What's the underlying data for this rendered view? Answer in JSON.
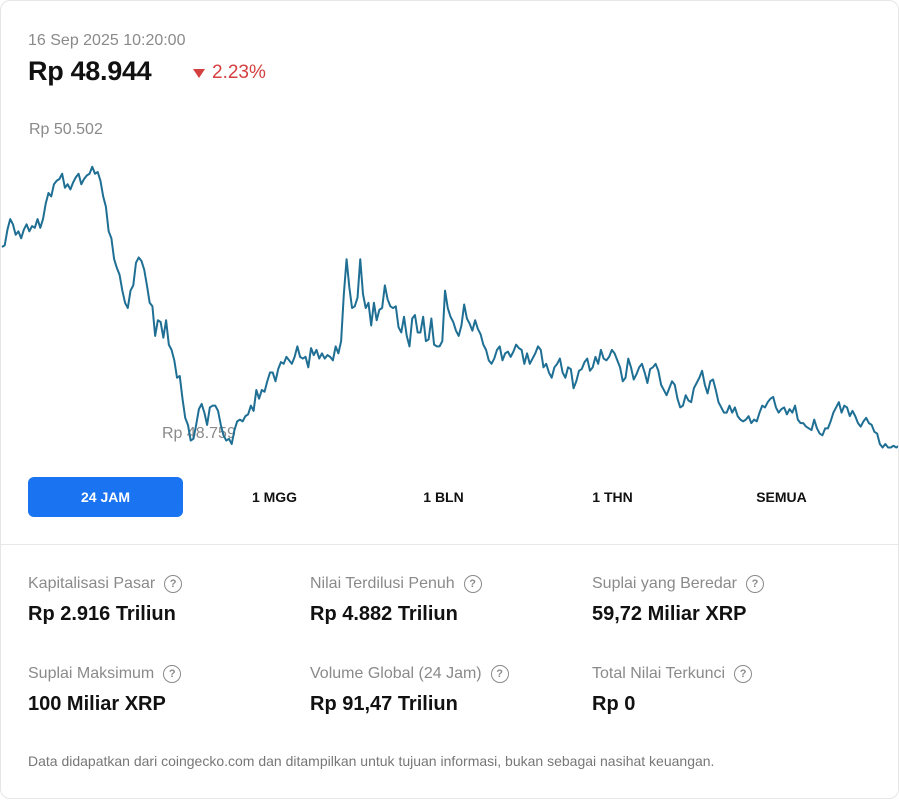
{
  "header": {
    "timestamp": "16 Sep 2025 10:20:00",
    "price": "Rp 48.944",
    "change": "2.23%",
    "change_direction": "down",
    "change_color": "#d3403f"
  },
  "chart_data": {
    "type": "line",
    "color": "#1f6f94",
    "high_label": "Rp 50.502",
    "low_label": "Rp 48.759",
    "ylim": [
      48700,
      50650
    ],
    "values": [
      49870,
      49880,
      49970,
      50030,
      50000,
      49940,
      49960,
      49920,
      49970,
      50000,
      49960,
      49990,
      49980,
      50030,
      49980,
      50030,
      50120,
      50180,
      50160,
      50230,
      50250,
      50260,
      50290,
      50210,
      50230,
      50200,
      50240,
      50270,
      50290,
      50230,
      50260,
      50280,
      50290,
      50330,
      50290,
      50300,
      50250,
      50160,
      50100,
      49960,
      49920,
      49800,
      49750,
      49710,
      49620,
      49550,
      49520,
      49620,
      49650,
      49780,
      49810,
      49790,
      49740,
      49650,
      49550,
      49530,
      49360,
      49450,
      49440,
      49350,
      49450,
      49310,
      49280,
      49220,
      49120,
      49130,
      49000,
      48890,
      48850,
      48760,
      48770,
      48850,
      48940,
      48970,
      48920,
      48850,
      48950,
      48960,
      48960,
      48930,
      48850,
      48790,
      48760,
      48770,
      48740,
      48820,
      48870,
      48880,
      48870,
      48900,
      48910,
      48960,
      48930,
      49050,
      49000,
      49050,
      49040,
      49100,
      49150,
      49150,
      49100,
      49170,
      49210,
      49200,
      49240,
      49220,
      49200,
      49240,
      49300,
      49240,
      49230,
      49240,
      49180,
      49290,
      49250,
      49280,
      49230,
      49260,
      49230,
      49250,
      49240,
      49220,
      49300,
      49260,
      49330,
      49600,
      49800,
      49640,
      49520,
      49530,
      49580,
      49800,
      49600,
      49520,
      49550,
      49420,
      49550,
      49450,
      49510,
      49520,
      49650,
      49570,
      49530,
      49520,
      49530,
      49410,
      49380,
      49470,
      49360,
      49300,
      49460,
      49480,
      49380,
      49380,
      49470,
      49330,
      49340,
      49460,
      49310,
      49300,
      49300,
      49330,
      49620,
      49520,
      49470,
      49440,
      49390,
      49360,
      49420,
      49540,
      49460,
      49430,
      49390,
      49450,
      49400,
      49370,
      49310,
      49280,
      49220,
      49200,
      49230,
      49280,
      49300,
      49220,
      49260,
      49270,
      49240,
      49270,
      49310,
      49290,
      49280,
      49200,
      49260,
      49200,
      49230,
      49260,
      49300,
      49280,
      49180,
      49200,
      49150,
      49120,
      49180,
      49200,
      49230,
      49150,
      49120,
      49180,
      49170,
      49060,
      49100,
      49160,
      49170,
      49210,
      49230,
      49160,
      49180,
      49240,
      49200,
      49280,
      49230,
      49220,
      49240,
      49280,
      49260,
      49220,
      49180,
      49100,
      49120,
      49230,
      49180,
      49110,
      49140,
      49180,
      49200,
      49150,
      49090,
      49170,
      49180,
      49200,
      49160,
      49080,
      49050,
      49020,
      49060,
      49100,
      49080,
      49000,
      48950,
      48960,
      49020,
      48990,
      48980,
      49060,
      49090,
      49120,
      49160,
      49080,
      49030,
      49100,
      49110,
      49050,
      48980,
      48950,
      48920,
      48920,
      48960,
      48920,
      48950,
      48900,
      48880,
      48870,
      48880,
      48900,
      48860,
      48880,
      48870,
      48920,
      48960,
      48950,
      48980,
      49000,
      49010,
      48950,
      48920,
      48940,
      48950,
      48910,
      48940,
      48920,
      48960,
      48880,
      48860,
      48860,
      48840,
      48830,
      48820,
      48880,
      48830,
      48800,
      48790,
      48830,
      48830,
      48870,
      48920,
      48950,
      48980,
      48920,
      48960,
      48950,
      48900,
      48930,
      48900,
      48860,
      48840,
      48870,
      48890,
      48860,
      48850,
      48810,
      48800,
      48740,
      48720,
      48740,
      48720,
      48720,
      48730,
      48720,
      48730
    ]
  },
  "range_tabs": [
    {
      "label": "24 JAM",
      "active": true
    },
    {
      "label": "1 MGG",
      "active": false
    },
    {
      "label": "1 BLN",
      "active": false
    },
    {
      "label": "1 THN",
      "active": false
    },
    {
      "label": "SEMUA",
      "active": false
    }
  ],
  "stats": [
    {
      "label": "Kapitalisasi Pasar",
      "value": "Rp 2.916 Triliun"
    },
    {
      "label": "Nilai Terdilusi Penuh",
      "value": "Rp 4.882 Triliun"
    },
    {
      "label": "Suplai yang Beredar",
      "value": "59,72 Miliar XRP"
    },
    {
      "label": "Suplai Maksimum",
      "value": "100 Miliar XRP"
    },
    {
      "label": "Volume Global (24 Jam)",
      "value": "Rp 91,47 Triliun"
    },
    {
      "label": "Total Nilai Terkunci",
      "value": "Rp 0"
    }
  ],
  "help_icon": "question-circle-icon",
  "footer": "Data didapatkan dari coingecko.com dan ditampilkan untuk tujuan informasi, bukan sebagai nasihat keuangan.",
  "accent_color": "#1a73f0"
}
